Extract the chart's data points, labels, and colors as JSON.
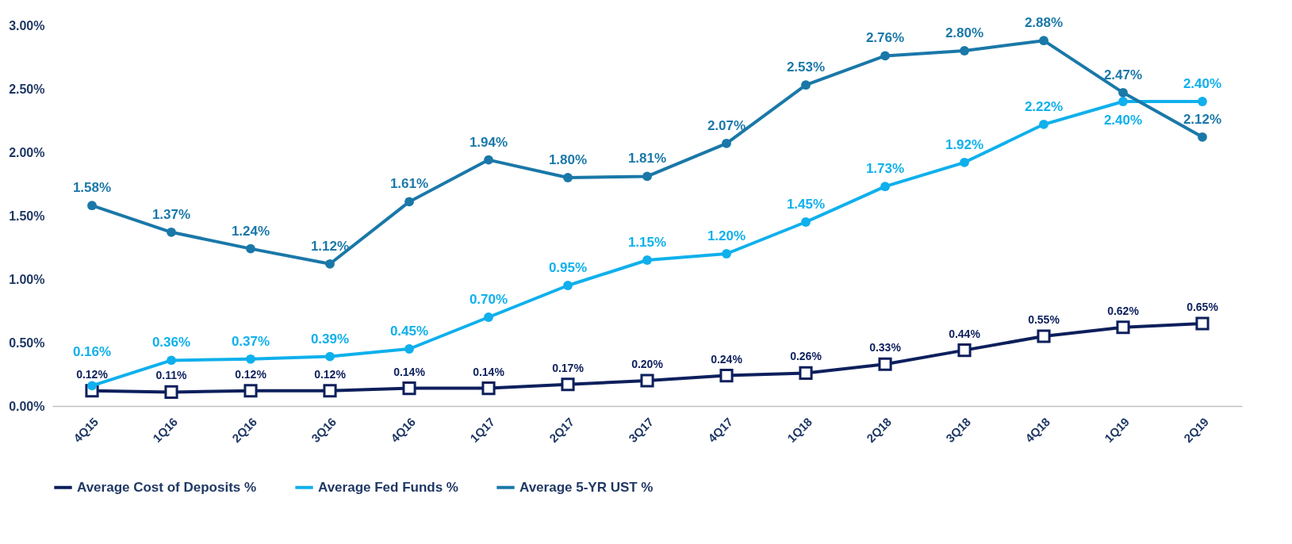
{
  "chart_data": {
    "type": "line",
    "categories": [
      "4Q15",
      "1Q16",
      "2Q16",
      "3Q16",
      "4Q16",
      "1Q17",
      "2Q17",
      "3Q17",
      "4Q17",
      "1Q18",
      "2Q18",
      "3Q18",
      "4Q18",
      "1Q19",
      "2Q19"
    ],
    "ylim": [
      0,
      3
    ],
    "yticks": [
      {
        "value": 0,
        "label": "0.00%"
      },
      {
        "value": 0.5,
        "label": "0.50%"
      },
      {
        "value": 1,
        "label": "1.00%"
      },
      {
        "value": 1.5,
        "label": "1.50%"
      },
      {
        "value": 2,
        "label": "2.00%"
      },
      {
        "value": 2.5,
        "label": "2.50%"
      },
      {
        "value": 3,
        "label": "3.00%"
      }
    ],
    "grid": false,
    "legend": "bottom",
    "line_style": "solid",
    "series": [
      {
        "name": "Average Cost of Deposits %",
        "color": "#0d1f5c",
        "marker": "square",
        "values": [
          0.12,
          0.11,
          0.12,
          0.12,
          0.14,
          0.14,
          0.17,
          0.2,
          0.24,
          0.26,
          0.33,
          0.44,
          0.55,
          0.62,
          0.65
        ],
        "value_labels": [
          "0.12%",
          "0.11%",
          "0.12%",
          "0.12%",
          "0.14%",
          "0.14%",
          "0.17%",
          "0.20%",
          "0.24%",
          "0.26%",
          "0.33%",
          "0.44%",
          "0.55%",
          "0.62%",
          "0.65%"
        ]
      },
      {
        "name": "Average Fed Funds %",
        "color": "#0fb0ec",
        "marker": "circle",
        "values": [
          0.16,
          0.36,
          0.37,
          0.39,
          0.45,
          0.7,
          0.95,
          1.15,
          1.2,
          1.45,
          1.73,
          1.92,
          2.22,
          2.4,
          2.4
        ],
        "value_labels": [
          "0.16%",
          "0.36%",
          "0.37%",
          "0.39%",
          "0.45%",
          "0.70%",
          "0.95%",
          "1.15%",
          "1.20%",
          "1.45%",
          "1.73%",
          "1.92%",
          "2.22%",
          "2.40%",
          "2.40%"
        ]
      },
      {
        "name": "Average 5-YR UST %",
        "color": "#1a78a8",
        "marker": "circle",
        "values": [
          1.58,
          1.37,
          1.24,
          1.12,
          1.61,
          1.94,
          1.8,
          1.81,
          2.07,
          2.53,
          2.76,
          2.8,
          2.88,
          2.47,
          2.12
        ],
        "value_labels": [
          "1.58%",
          "1.37%",
          "1.24%",
          "1.12%",
          "1.61%",
          "1.94%",
          "1.80%",
          "1.81%",
          "2.07%",
          "2.53%",
          "2.76%",
          "2.80%",
          "2.88%",
          "2.47%",
          "2.12%"
        ]
      }
    ]
  }
}
